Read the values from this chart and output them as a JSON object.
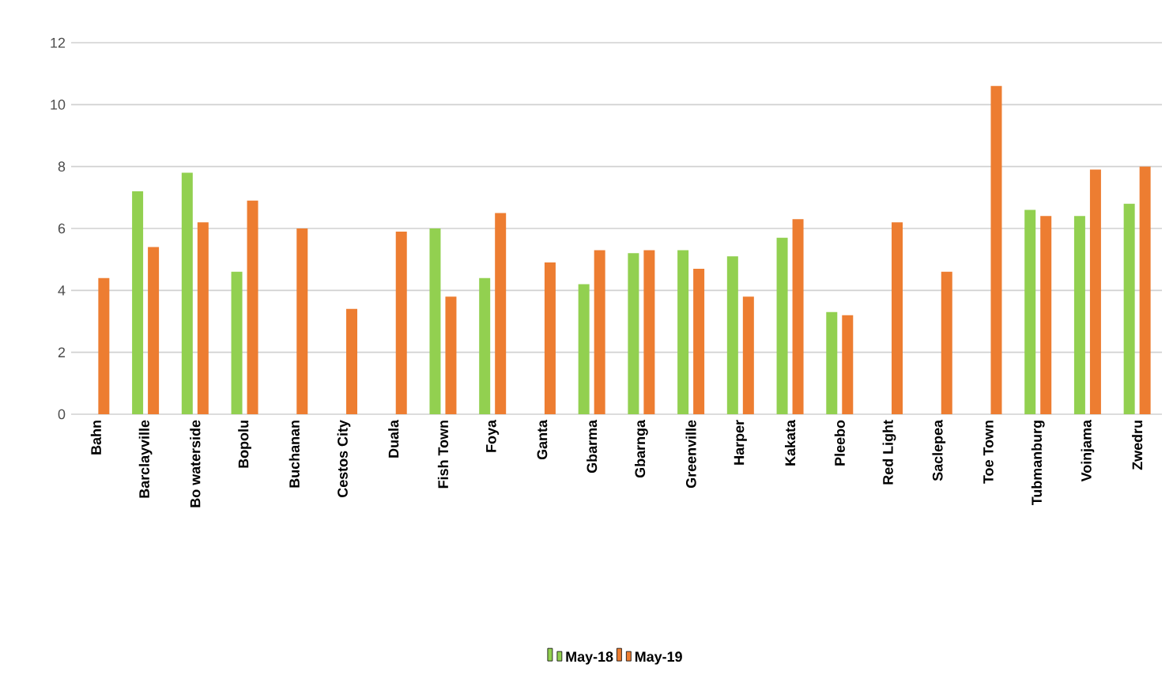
{
  "chart_data": {
    "type": "bar",
    "categories": [
      "Bahn",
      "Barclayville",
      "Bo waterside",
      "Bopolu",
      "Buchanan",
      "Cestos City",
      "Duala",
      "Fish Town",
      "Foya",
      "Ganta",
      "Gbarma",
      "Gbarnga",
      "Greenville",
      "Harper",
      "Kakata",
      "Pleebo",
      "Red Light",
      "Saclepea",
      "Toe Town",
      "Tubmanburg",
      "Voinjama",
      "Zwedru"
    ],
    "series": [
      {
        "name": "May-18",
        "color": "#92d050",
        "values": [
          null,
          7.2,
          7.8,
          4.6,
          null,
          null,
          null,
          6.0,
          4.4,
          null,
          4.2,
          5.2,
          5.3,
          5.1,
          5.7,
          3.3,
          null,
          null,
          null,
          6.6,
          6.4,
          6.8
        ]
      },
      {
        "name": "May-19",
        "color": "#ed7d31",
        "values": [
          4.4,
          5.4,
          6.2,
          6.9,
          6.0,
          3.4,
          5.9,
          3.8,
          6.5,
          4.9,
          5.3,
          5.3,
          4.7,
          3.8,
          6.3,
          3.2,
          6.2,
          4.6,
          10.6,
          6.4,
          7.9,
          8.0
        ]
      }
    ],
    "ylim": [
      0,
      12
    ],
    "yticks": [
      0,
      2,
      4,
      6,
      8,
      10,
      12
    ],
    "grid": "y",
    "legend": "bottom"
  }
}
